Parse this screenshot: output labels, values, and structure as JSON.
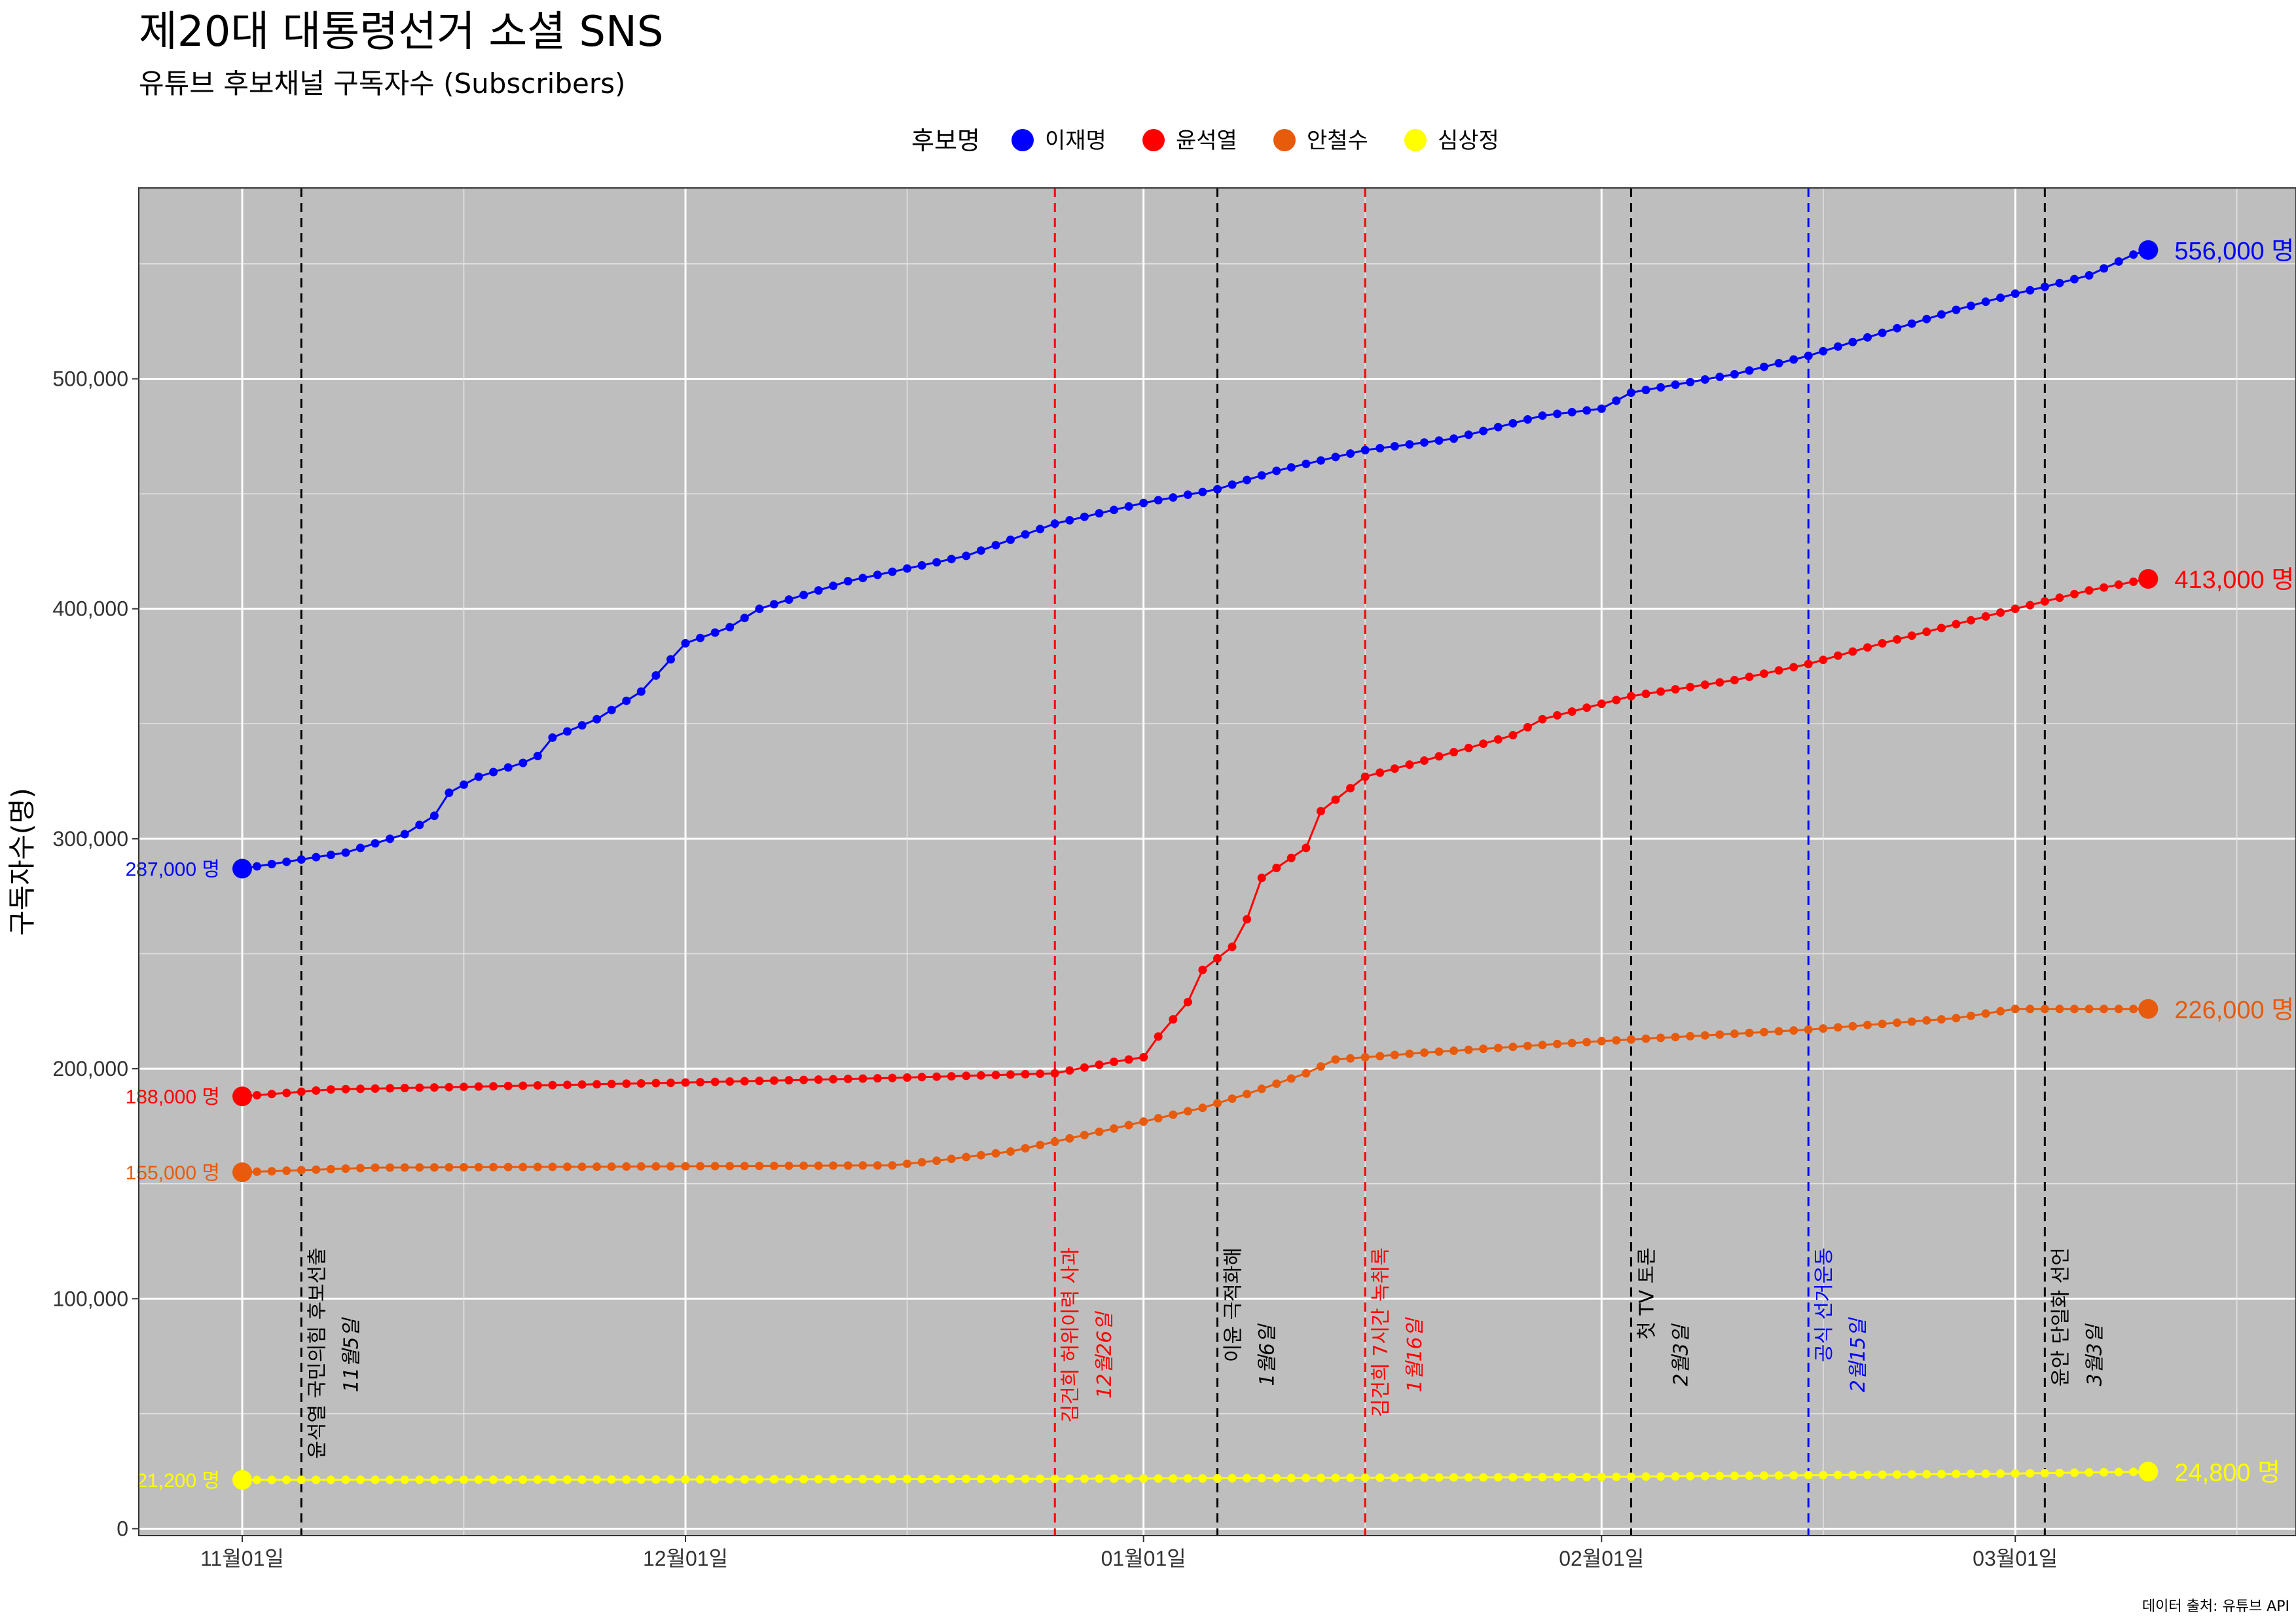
{
  "header": {
    "title": "제20대 대통령선거 소셜 SNS",
    "subtitle": "유튜브 후보채널 구독자수 (Subscribers)"
  },
  "legend": {
    "title": "후보명",
    "items": [
      {
        "label": "이재명",
        "color": "#0000FF"
      },
      {
        "label": "윤석열",
        "color": "#FF0000"
      },
      {
        "label": "안철수",
        "color": "#E85A0C"
      },
      {
        "label": "심상정",
        "color": "#FFFF00"
      }
    ]
  },
  "caption": "데이터 출처: 유튜브 API",
  "chart_data": {
    "type": "line",
    "ylabel": "구독자수(명)",
    "x_range": [
      "2021-10-25",
      "2022-03-20"
    ],
    "ylim": [
      -3000,
      583000
    ],
    "x_ticks": [
      {
        "date": "2021-11-01",
        "label": "11월01일"
      },
      {
        "date": "2021-12-01",
        "label": "12월01일"
      },
      {
        "date": "2022-01-01",
        "label": "01월01일"
      },
      {
        "date": "2022-02-01",
        "label": "02월01일"
      },
      {
        "date": "2022-03-01",
        "label": "03월01일"
      }
    ],
    "y_ticks": [
      {
        "value": 0,
        "label": "0"
      },
      {
        "value": 100000,
        "label": "100,000"
      },
      {
        "value": 200000,
        "label": "200,000"
      },
      {
        "value": 300000,
        "label": "300,000"
      },
      {
        "value": 400000,
        "label": "400,000"
      },
      {
        "value": 500000,
        "label": "500,000"
      }
    ],
    "grid": true,
    "background": "#BEBEBE",
    "events": [
      {
        "date": "2021-11-05",
        "label": "윤석열 국민의힘 후보선출",
        "date_label": "11월5일",
        "color": "#000000"
      },
      {
        "date": "2021-12-26",
        "label": "김건희 허위이력 사과",
        "date_label": "12월26일",
        "color": "#FF0000"
      },
      {
        "date": "2022-01-06",
        "label": "이윤 극적화해",
        "date_label": "1월6일",
        "color": "#000000"
      },
      {
        "date": "2022-01-16",
        "label": "김건희 7시간 녹취록",
        "date_label": "1월16일",
        "color": "#FF0000"
      },
      {
        "date": "2022-02-03",
        "label": "첫 TV 토론",
        "date_label": "2월3일",
        "color": "#000000"
      },
      {
        "date": "2022-02-15",
        "label": "공식 선거운동",
        "date_label": "2월15일",
        "color": "#0000FF"
      },
      {
        "date": "2022-03-03",
        "label": "윤안 단일화 선언",
        "date_label": "3월3일",
        "color": "#000000"
      }
    ],
    "series": [
      {
        "name": "이재명",
        "color": "#0000FF",
        "start_label": "287,000 명",
        "end_label": "556,000 명",
        "points": [
          [
            "2021-11-01",
            287000
          ],
          [
            "2021-11-08",
            294000
          ],
          [
            "2021-11-12",
            302000
          ],
          [
            "2021-11-14",
            310000
          ],
          [
            "2021-11-15",
            320000
          ],
          [
            "2021-11-17",
            327000
          ],
          [
            "2021-11-20",
            333000
          ],
          [
            "2021-11-21",
            336000
          ],
          [
            "2021-11-22",
            344000
          ],
          [
            "2021-11-25",
            352000
          ],
          [
            "2021-11-28",
            364000
          ],
          [
            "2021-12-01",
            385000
          ],
          [
            "2021-12-04",
            392000
          ],
          [
            "2021-12-06",
            400000
          ],
          [
            "2021-12-12",
            412000
          ],
          [
            "2021-12-20",
            423000
          ],
          [
            "2021-12-26",
            437000
          ],
          [
            "2022-01-01",
            446000
          ],
          [
            "2022-01-06",
            452000
          ],
          [
            "2022-01-10",
            460000
          ],
          [
            "2022-01-16",
            469000
          ],
          [
            "2022-01-22",
            474000
          ],
          [
            "2022-01-28",
            484000
          ],
          [
            "2022-02-01",
            487000
          ],
          [
            "2022-02-03",
            494000
          ],
          [
            "2022-02-10",
            502000
          ],
          [
            "2022-02-15",
            510000
          ],
          [
            "2022-02-20",
            520000
          ],
          [
            "2022-02-25",
            530000
          ],
          [
            "2022-03-01",
            537000
          ],
          [
            "2022-03-03",
            540000
          ],
          [
            "2022-03-06",
            545000
          ],
          [
            "2022-03-09",
            554000
          ],
          [
            "2022-03-10",
            556000
          ]
        ]
      },
      {
        "name": "윤석열",
        "color": "#FF0000",
        "start_label": "188,000 명",
        "end_label": "413,000 명",
        "points": [
          [
            "2021-11-01",
            188000
          ],
          [
            "2021-11-07",
            191000
          ],
          [
            "2021-11-15",
            192000
          ],
          [
            "2021-12-01",
            194000
          ],
          [
            "2021-12-15",
            196000
          ],
          [
            "2021-12-26",
            198000
          ],
          [
            "2021-12-30",
            203000
          ],
          [
            "2022-01-01",
            205000
          ],
          [
            "2022-01-02",
            214000
          ],
          [
            "2022-01-04",
            229000
          ],
          [
            "2022-01-05",
            243000
          ],
          [
            "2022-01-07",
            253000
          ],
          [
            "2022-01-08",
            265000
          ],
          [
            "2022-01-09",
            283000
          ],
          [
            "2022-01-12",
            296000
          ],
          [
            "2022-01-13",
            312000
          ],
          [
            "2022-01-16",
            327000
          ],
          [
            "2022-01-20",
            334000
          ],
          [
            "2022-01-26",
            345000
          ],
          [
            "2022-01-28",
            352000
          ],
          [
            "2022-02-03",
            362000
          ],
          [
            "2022-02-10",
            369000
          ],
          [
            "2022-02-15",
            376000
          ],
          [
            "2022-02-20",
            385000
          ],
          [
            "2022-03-01",
            400000
          ],
          [
            "2022-03-06",
            408000
          ],
          [
            "2022-03-10",
            413000
          ]
        ]
      },
      {
        "name": "안철수",
        "color": "#E85A0C",
        "start_label": "155,000 명",
        "end_label": "226,000 명",
        "points": [
          [
            "2021-11-01",
            155000
          ],
          [
            "2021-11-10",
            157000
          ],
          [
            "2021-12-15",
            158000
          ],
          [
            "2021-12-18",
            160000
          ],
          [
            "2021-12-23",
            164000
          ],
          [
            "2021-12-30",
            174000
          ],
          [
            "2022-01-05",
            183000
          ],
          [
            "2022-01-08",
            189000
          ],
          [
            "2022-01-12",
            198000
          ],
          [
            "2022-01-14",
            204000
          ],
          [
            "2022-01-20",
            207000
          ],
          [
            "2022-02-01",
            212000
          ],
          [
            "2022-02-15",
            217000
          ],
          [
            "2022-02-25",
            222000
          ],
          [
            "2022-03-01",
            226000
          ],
          [
            "2022-03-10",
            226000
          ]
        ]
      },
      {
        "name": "심상정",
        "color": "#FFFF00",
        "start_label": "21,200 명",
        "end_label": "24,800 명",
        "points": [
          [
            "2021-11-01",
            21200
          ],
          [
            "2021-12-01",
            21400
          ],
          [
            "2022-01-01",
            21800
          ],
          [
            "2022-02-01",
            22500
          ],
          [
            "2022-03-01",
            24000
          ],
          [
            "2022-03-10",
            24800
          ]
        ]
      }
    ]
  }
}
